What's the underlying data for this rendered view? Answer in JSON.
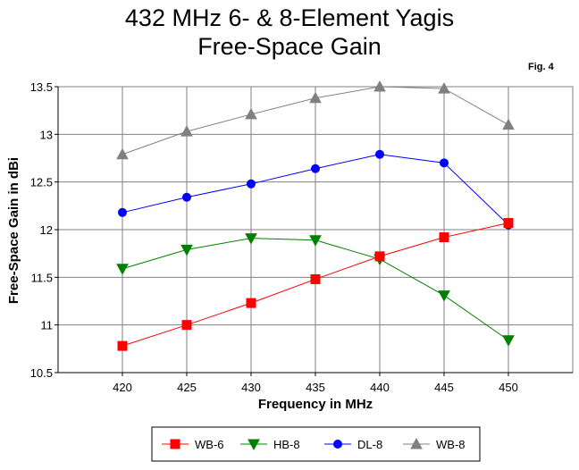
{
  "page": {
    "title_line1": "432 MHz 6- & 8-Element Yagis",
    "title_line2": "Free-Space Gain",
    "fig_label": "Fig. 4"
  },
  "chart_data": {
    "type": "line",
    "title": "432 MHz 6- & 8-Element Yagis Free-Space Gain",
    "xlabel": "Frequency in MHz",
    "ylabel": "Free-Space Gain in dBi",
    "x": [
      420,
      425,
      430,
      435,
      440,
      445,
      450
    ],
    "xlim": [
      415,
      455
    ],
    "ylim": [
      10.5,
      13.5
    ],
    "xticks": [
      "420",
      "425",
      "430",
      "435",
      "440",
      "445",
      "450"
    ],
    "yticks": [
      "10.5",
      "11",
      "11.5",
      "12",
      "12.5",
      "13",
      "13.5"
    ],
    "grid": true,
    "legend_position": "bottom",
    "series": [
      {
        "name": "WB-6",
        "color": "#ff0000",
        "marker": "square",
        "values": [
          10.78,
          11.0,
          11.23,
          11.48,
          11.72,
          11.92,
          12.07
        ]
      },
      {
        "name": "HB-8",
        "color": "#008000",
        "marker": "triangle-down",
        "values": [
          11.59,
          11.79,
          11.91,
          11.89,
          11.69,
          11.31,
          10.84
        ]
      },
      {
        "name": "DL-8",
        "color": "#0000ff",
        "marker": "circle",
        "values": [
          12.18,
          12.34,
          12.48,
          12.64,
          12.79,
          12.7,
          12.05
        ]
      },
      {
        "name": "WB-8",
        "color": "#808080",
        "marker": "triangle-up",
        "values": [
          12.79,
          13.03,
          13.21,
          13.38,
          13.5,
          13.48,
          13.1
        ]
      }
    ]
  }
}
